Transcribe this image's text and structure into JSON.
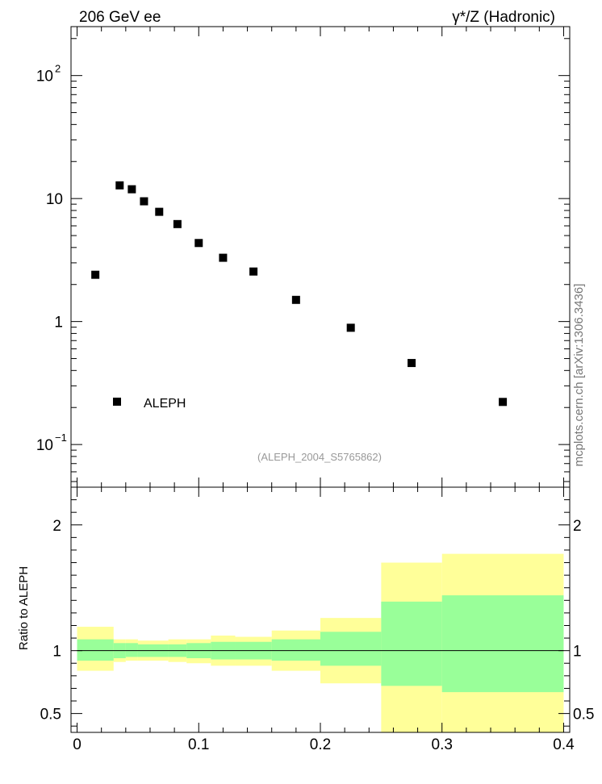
{
  "header": {
    "left_label": "206 GeV ee",
    "right_label": "γ*/Z (Hadronic)"
  },
  "side_label": "mcplots.cern.ch [arXiv:1306.3436]",
  "analysis_label": "(ALEPH_2004_S5765862)",
  "legend": {
    "entry": "ALEPH"
  },
  "colors": {
    "band_outer": "#ffff99",
    "band_inner": "#99ff99",
    "marker": "#000000"
  },
  "chart_data": [
    {
      "type": "scatter",
      "panel": "main",
      "yscale": "log",
      "xlim": [
        -0.005,
        0.405
      ],
      "ylim": [
        0.045,
        250
      ],
      "ytick_labels": [
        "10^-1",
        "1",
        "10",
        "10^2"
      ],
      "series": [
        {
          "name": "ALEPH",
          "x": [
            0.015,
            0.035,
            0.045,
            0.055,
            0.0675,
            0.0825,
            0.1,
            0.12,
            0.145,
            0.18,
            0.225,
            0.275,
            0.35
          ],
          "y": [
            2.4,
            12.8,
            11.9,
            9.5,
            7.8,
            6.2,
            4.35,
            3.3,
            2.55,
            1.5,
            0.89,
            0.46,
            0.222
          ]
        }
      ]
    },
    {
      "type": "area",
      "panel": "ratio",
      "ylabel": "Ratio to ALEPH",
      "xlim": [
        -0.005,
        0.405
      ],
      "ylim": [
        0.35,
        2.3
      ],
      "yticks": [
        0.5,
        1,
        2
      ],
      "ytick_labels": [
        "0.5",
        "1",
        "2"
      ],
      "xticks": [
        0,
        0.1,
        0.2,
        0.3,
        0.4
      ],
      "xtick_labels": [
        "0",
        "0.1",
        "0.2",
        "0.3",
        "0.4"
      ],
      "reference_line": 1,
      "bins": [
        {
          "lo": 0.0,
          "hi": 0.03,
          "outer": [
            0.84,
            1.19
          ],
          "inner": [
            0.92,
            1.09
          ]
        },
        {
          "lo": 0.03,
          "hi": 0.04,
          "outer": [
            0.91,
            1.09
          ],
          "inner": [
            0.94,
            1.06
          ]
        },
        {
          "lo": 0.04,
          "hi": 0.05,
          "outer": [
            0.92,
            1.09
          ],
          "inner": [
            0.95,
            1.06
          ]
        },
        {
          "lo": 0.05,
          "hi": 0.06,
          "outer": [
            0.92,
            1.08
          ],
          "inner": [
            0.95,
            1.05
          ]
        },
        {
          "lo": 0.06,
          "hi": 0.075,
          "outer": [
            0.92,
            1.08
          ],
          "inner": [
            0.95,
            1.05
          ]
        },
        {
          "lo": 0.075,
          "hi": 0.09,
          "outer": [
            0.91,
            1.09
          ],
          "inner": [
            0.95,
            1.05
          ]
        },
        {
          "lo": 0.09,
          "hi": 0.11,
          "outer": [
            0.9,
            1.09
          ],
          "inner": [
            0.94,
            1.06
          ]
        },
        {
          "lo": 0.11,
          "hi": 0.13,
          "outer": [
            0.88,
            1.12
          ],
          "inner": [
            0.93,
            1.07
          ]
        },
        {
          "lo": 0.13,
          "hi": 0.16,
          "outer": [
            0.88,
            1.11
          ],
          "inner": [
            0.93,
            1.07
          ]
        },
        {
          "lo": 0.16,
          "hi": 0.2,
          "outer": [
            0.84,
            1.16
          ],
          "inner": [
            0.92,
            1.09
          ]
        },
        {
          "lo": 0.2,
          "hi": 0.25,
          "outer": [
            0.74,
            1.26
          ],
          "inner": [
            0.88,
            1.15
          ]
        },
        {
          "lo": 0.25,
          "hi": 0.3,
          "outer": [
            0.35,
            1.7
          ],
          "inner": [
            0.72,
            1.39
          ]
        },
        {
          "lo": 0.3,
          "hi": 0.4,
          "outer": [
            0.35,
            1.77
          ],
          "inner": [
            0.67,
            1.44
          ]
        }
      ]
    }
  ]
}
